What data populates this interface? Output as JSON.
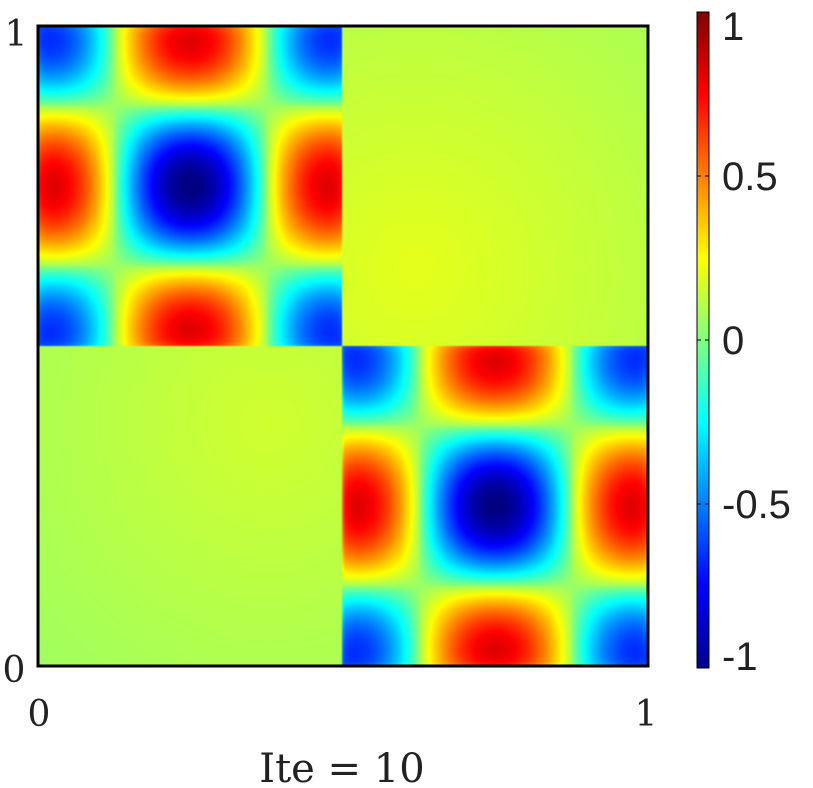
{
  "chart_data": {
    "type": "heatmap",
    "title": "",
    "xlabel": "Ite = 10",
    "ylabel": "",
    "xlim": [
      0,
      1
    ],
    "ylim": [
      0,
      1
    ],
    "x_ticks": [
      "0",
      "1"
    ],
    "y_ticks": [
      "0",
      "1"
    ],
    "colorbar": {
      "colormap": "jet",
      "range": [
        -1,
        1
      ],
      "ticks": [
        "1",
        "0.5",
        "0",
        "-0.5",
        "-1"
      ]
    },
    "regions": [
      {
        "name": "top-left block",
        "x_range": [
          0,
          0.5
        ],
        "y_range": [
          0.5,
          1
        ],
        "pattern": "cos(4πx)·cos(4πy)-like checkerboard, amplitude 1"
      },
      {
        "name": "bottom-right block",
        "x_range": [
          0.5,
          1
        ],
        "y_range": [
          0,
          0.5
        ],
        "pattern": "cos(4πx)·cos(4πy)-like checkerboard, amplitude 1"
      },
      {
        "name": "top-right block",
        "x_range": [
          0.5,
          1
        ],
        "y_range": [
          0.5,
          1
        ],
        "approx_value": 0.1
      },
      {
        "name": "bottom-left block",
        "x_range": [
          0,
          0.5
        ],
        "y_range": [
          0,
          0.5
        ],
        "approx_value": 0.1
      }
    ],
    "peaks": [
      {
        "x": 0.125,
        "y": 0.875,
        "value": -1
      },
      {
        "x": 0.375,
        "y": 0.875,
        "value": 1
      },
      {
        "x": 0.125,
        "y": 0.625,
        "value": 1
      },
      {
        "x": 0.375,
        "y": 0.625,
        "value": -1
      },
      {
        "x": 0.625,
        "y": 0.375,
        "value": -1
      },
      {
        "x": 0.875,
        "y": 0.375,
        "value": 1
      },
      {
        "x": 0.625,
        "y": 0.125,
        "value": 1
      },
      {
        "x": 0.875,
        "y": 0.125,
        "value": -1
      }
    ],
    "grid": false,
    "legend": "colorbar-right"
  }
}
